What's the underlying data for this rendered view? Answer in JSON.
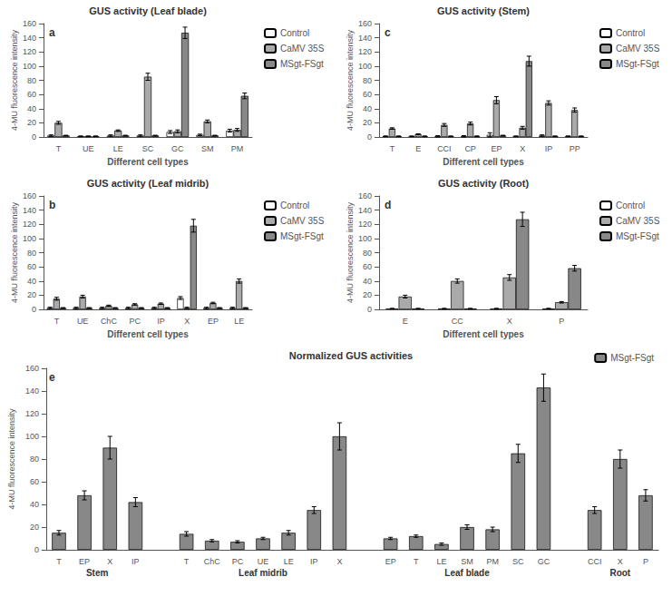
{
  "chart_data": [
    {
      "type": "bar",
      "title": "GUS activity (Leaf blade)",
      "annotations": [
        "a"
      ],
      "xlabel": "Different cell types",
      "ylabel": "4-MU fluorescence intensity",
      "categories": [
        "T",
        "UE",
        "LE",
        "SC",
        "GC",
        "SM",
        "PM"
      ],
      "series": [
        {
          "name": "Control",
          "color": "#ffffff",
          "values": [
            2,
            1,
            2,
            2,
            7,
            3,
            9
          ],
          "errors": [
            1,
            0.5,
            1,
            1,
            2,
            1,
            2
          ]
        },
        {
          "name": "CaMV 35S",
          "color": "#aaaaaa",
          "values": [
            20,
            1,
            9,
            85,
            8,
            22,
            10
          ],
          "errors": [
            2,
            0.5,
            1,
            5,
            2,
            2,
            2
          ]
        },
        {
          "name": "MSgt-FSgt",
          "color": "#888888",
          "values": [
            2,
            1,
            2,
            2,
            147,
            2,
            58
          ],
          "errors": [
            0.5,
            0.5,
            0.5,
            0.5,
            8,
            0.5,
            4
          ]
        }
      ],
      "ylim": [
        0,
        160
      ],
      "yticks": [
        0,
        20,
        40,
        60,
        80,
        100,
        120,
        140,
        160
      ],
      "grid": false,
      "legend": "upper right"
    },
    {
      "type": "bar",
      "title": "GUS activity (Leaf midrib)",
      "annotations": [
        "b"
      ],
      "xlabel": "Different cell types",
      "ylabel": "4-MU fluorescence intensity",
      "categories": [
        "T",
        "UE",
        "ChC",
        "PC",
        "IP",
        "X",
        "EP",
        "LE"
      ],
      "series": [
        {
          "name": "Control",
          "color": "#ffffff",
          "values": [
            2,
            2,
            2,
            2,
            2,
            16,
            2,
            2
          ],
          "errors": [
            1,
            1,
            1,
            1,
            1,
            2,
            1,
            1
          ]
        },
        {
          "name": "CaMV 35S",
          "color": "#aaaaaa",
          "values": [
            15,
            18,
            5,
            7,
            8,
            2,
            9,
            40
          ],
          "errors": [
            2,
            2,
            1,
            1,
            1,
            1,
            1,
            3
          ]
        },
        {
          "name": "MSgt-FSgt",
          "color": "#888888",
          "values": [
            2,
            2,
            2,
            2,
            2,
            118,
            2,
            2
          ],
          "errors": [
            0.5,
            0.5,
            0.5,
            0.5,
            0.5,
            9,
            0.5,
            0.5
          ]
        }
      ],
      "ylim": [
        0,
        160
      ],
      "yticks": [
        0,
        20,
        40,
        60,
        80,
        100,
        120,
        140,
        160
      ],
      "grid": false,
      "legend": "upper right"
    },
    {
      "type": "bar",
      "title": "GUS activity (Stem)",
      "annotations": [
        "c"
      ],
      "xlabel": "Different cell types",
      "ylabel": "4-MU fluorescence intensity",
      "categories": [
        "T",
        "E",
        "CCI",
        "CP",
        "EP",
        "X",
        "IP",
        "PP"
      ],
      "series": [
        {
          "name": "Control",
          "color": "#ffffff",
          "values": [
            1,
            1,
            1,
            1,
            3,
            1,
            2,
            1
          ],
          "errors": [
            0.5,
            0.5,
            1,
            1,
            3,
            0.5,
            1,
            0.5
          ]
        },
        {
          "name": "CaMV 35S",
          "color": "#aaaaaa",
          "values": [
            12,
            4,
            17,
            19,
            52,
            13,
            48,
            38
          ],
          "errors": [
            1,
            0.5,
            2,
            2,
            5,
            2,
            3,
            3
          ]
        },
        {
          "name": "MSgt-FSgt",
          "color": "#888888",
          "values": [
            1,
            1,
            1,
            1,
            2,
            107,
            1,
            1
          ],
          "errors": [
            0.5,
            0.5,
            0.5,
            0.5,
            0.5,
            7,
            0.5,
            0.5
          ]
        }
      ],
      "ylim": [
        0,
        160
      ],
      "yticks": [
        0,
        20,
        40,
        60,
        80,
        100,
        120,
        140,
        160
      ],
      "grid": false,
      "legend": "upper right"
    },
    {
      "type": "bar",
      "title": "GUS activity (Root)",
      "annotations": [
        "d"
      ],
      "xlabel": "Different cell types",
      "ylabel": "4-MU fluorescence intensity",
      "categories": [
        "E",
        "CC",
        "X",
        "P"
      ],
      "series": [
        {
          "name": "Control",
          "color": "#ffffff",
          "values": [
            1,
            1,
            1,
            1
          ],
          "errors": [
            0.5,
            0.5,
            0.5,
            0.5
          ]
        },
        {
          "name": "CaMV 35S",
          "color": "#aaaaaa",
          "values": [
            18,
            40,
            45,
            10
          ],
          "errors": [
            2,
            3,
            4,
            1
          ]
        },
        {
          "name": "MSgt-FSgt",
          "color": "#888888",
          "values": [
            1,
            1,
            127,
            58
          ],
          "errors": [
            0.5,
            0.5,
            10,
            4
          ]
        }
      ],
      "ylim": [
        0,
        160
      ],
      "yticks": [
        0,
        20,
        40,
        60,
        80,
        100,
        120,
        140,
        160
      ],
      "grid": false,
      "legend": "upper right"
    },
    {
      "type": "bar",
      "title": "Normalized GUS activities",
      "annotations": [
        "e"
      ],
      "ylabel": "4-MU fluorescence intensity",
      "categories": [
        "T",
        "EP",
        "X",
        "IP",
        "T",
        "ChC",
        "PC",
        "UE",
        "LE",
        "IP",
        "X",
        "EP",
        "T",
        "LE",
        "SM",
        "PM",
        "SC",
        "GC",
        "CCI",
        "X",
        "P"
      ],
      "groups": [
        {
          "label": "Stem",
          "count": 4
        },
        {
          "label": "Leaf midrib",
          "count": 7
        },
        {
          "label": "Leaf blade",
          "count": 7
        },
        {
          "label": "Root",
          "count": 3
        }
      ],
      "series": [
        {
          "name": "MSgt-FSgt",
          "color": "#888888",
          "values": [
            15,
            48,
            90,
            42,
            14,
            8,
            7,
            10,
            15,
            35,
            100,
            10,
            12,
            5,
            20,
            18,
            85,
            143,
            35,
            80,
            48
          ],
          "errors": [
            2,
            4,
            10,
            4,
            2,
            1,
            1,
            1,
            2,
            3,
            12,
            1,
            1,
            1,
            2,
            2,
            8,
            12,
            3,
            8,
            5
          ]
        }
      ],
      "ylim": [
        0,
        160
      ],
      "yticks": [
        0,
        20,
        40,
        60,
        80,
        100,
        120,
        140,
        160
      ],
      "grid": false,
      "legend": "upper right"
    }
  ]
}
